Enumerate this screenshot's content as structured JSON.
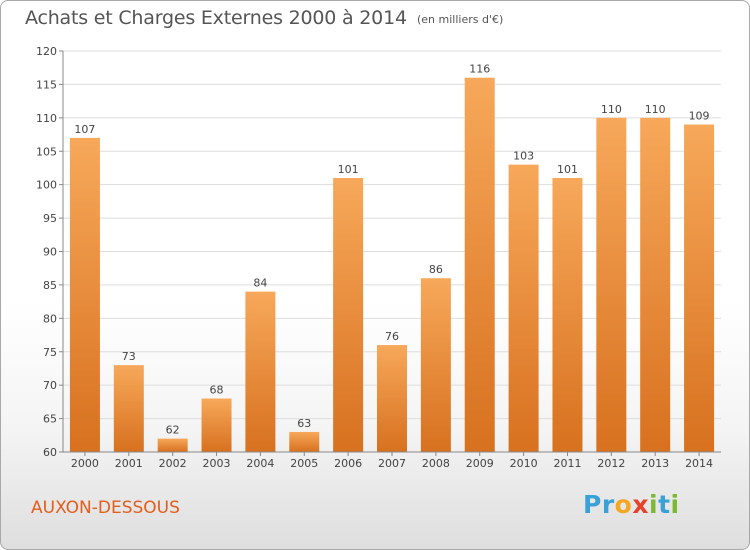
{
  "header": {
    "title": "Achats et Charges Externes 2000 à 2014",
    "unit_note": "(en milliers d'€)"
  },
  "footer": {
    "commune": "AUXON-DESSOUS",
    "logo_letters": [
      {
        "char": "P",
        "color": "#3aa0d8"
      },
      {
        "char": "r",
        "color": "#3aa0d8"
      },
      {
        "char": "o",
        "color": "#f5a623"
      },
      {
        "char": "x",
        "color": "#e8412c"
      },
      {
        "char": "i",
        "color": "#7cb833"
      },
      {
        "char": "t",
        "color": "#3aa0d8"
      },
      {
        "char": "i",
        "color": "#7cb833"
      }
    ]
  },
  "colors": {
    "bar_light": "#f7a85a",
    "bar_dark": "#d7711f",
    "grid": "#dddddd",
    "axis_text": "#444444",
    "title": "#555555",
    "commune": "#e35d1c"
  },
  "chart_data": {
    "type": "bar",
    "title": "Achats et Charges Externes 2000 à 2014",
    "subtitle": "(en milliers d'€)",
    "xlabel": "",
    "ylabel": "",
    "categories": [
      "2000",
      "2001",
      "2002",
      "2003",
      "2004",
      "2005",
      "2006",
      "2007",
      "2008",
      "2009",
      "2010",
      "2011",
      "2012",
      "2013",
      "2014"
    ],
    "values": [
      107,
      73,
      62,
      68,
      84,
      63,
      101,
      76,
      86,
      116,
      103,
      101,
      110,
      110,
      109
    ],
    "ylim": [
      60,
      120
    ],
    "yticks": [
      60,
      65,
      70,
      75,
      80,
      85,
      90,
      95,
      100,
      105,
      110,
      115,
      120
    ],
    "grid": true,
    "legend": "none",
    "data_labels": true
  }
}
